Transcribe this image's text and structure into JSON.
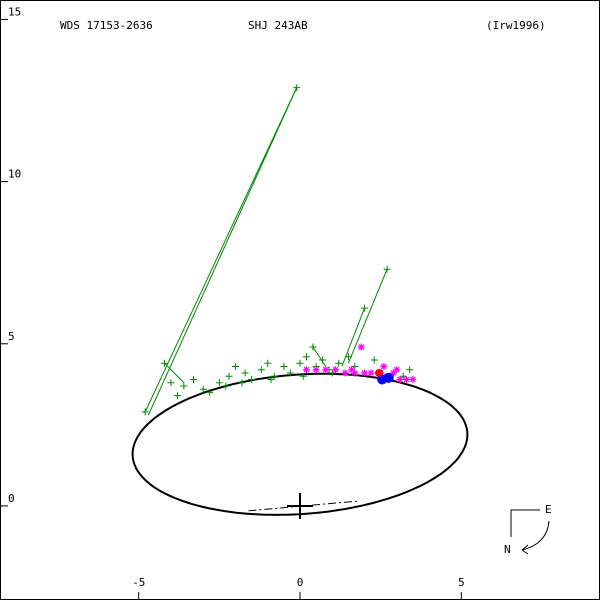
{
  "header": {
    "left": "WDS 17153-2636",
    "center": "SHJ 243AB",
    "right": "(Irw1996)"
  },
  "compass": {
    "east": "E",
    "north": "N"
  },
  "colors": {
    "orbit": "#000000",
    "observations": "#008800",
    "speckle": "#ff00ff",
    "current_position": "#ff0000",
    "predicted": "#0000ff"
  },
  "chart_data": {
    "type": "scatter",
    "xlim": [
      -9.3,
      9.3
    ],
    "ylim": [
      -2.9,
      15.6
    ],
    "x_ticks": [
      -5,
      0,
      5
    ],
    "y_ticks": [
      15,
      10,
      5,
      0
    ],
    "x_tick_labels": [
      "-5",
      "0",
      "5"
    ],
    "y_tick_labels": [
      "15",
      "10",
      "5",
      "0"
    ],
    "grid": false,
    "orbit": {
      "center": [
        0.0,
        1.9
      ],
      "semi_major_axis": 5.2,
      "semi_minor_axis": 2.15,
      "rotation_deg": 4
    },
    "primary": [
      0,
      0
    ],
    "node_line": [
      [
        -1.6,
        -0.15
      ],
      [
        1.8,
        0.15
      ]
    ],
    "observations": [
      [
        -0.1,
        12.9
      ],
      [
        -4.8,
        2.9
      ],
      [
        -4.2,
        4.4
      ],
      [
        -4.0,
        3.8
      ],
      [
        -3.6,
        3.7
      ],
      [
        -3.3,
        3.9
      ],
      [
        -3.0,
        3.6
      ],
      [
        -2.8,
        3.5
      ],
      [
        -2.5,
        3.8
      ],
      [
        -2.2,
        4.0
      ],
      [
        -2.0,
        4.3
      ],
      [
        -1.7,
        4.1
      ],
      [
        -1.5,
        3.9
      ],
      [
        -1.2,
        4.2
      ],
      [
        -1.0,
        4.4
      ],
      [
        -0.8,
        4.0
      ],
      [
        -0.5,
        4.3
      ],
      [
        -0.3,
        4.1
      ],
      [
        0.0,
        4.4
      ],
      [
        0.2,
        4.6
      ],
      [
        0.4,
        4.9
      ],
      [
        0.5,
        4.3
      ],
      [
        0.7,
        4.5
      ],
      [
        0.9,
        4.2
      ],
      [
        1.2,
        4.4
      ],
      [
        1.5,
        4.6
      ],
      [
        1.7,
        4.3
      ],
      [
        2.0,
        6.1
      ],
      [
        2.3,
        4.5
      ],
      [
        2.7,
        7.3
      ],
      [
        2.9,
        4.1
      ],
      [
        3.2,
        4.0
      ],
      [
        3.4,
        4.2
      ],
      [
        -3.8,
        3.4
      ],
      [
        -2.3,
        3.7
      ],
      [
        -1.8,
        3.8
      ],
      [
        -0.9,
        3.9
      ],
      [
        0.1,
        4.0
      ],
      [
        1.0,
        4.1
      ],
      [
        2.5,
        3.9
      ]
    ],
    "observation_connectors": [
      [
        [
          -0.1,
          12.9
        ],
        [
          -4.8,
          2.9
        ]
      ],
      [
        [
          -0.1,
          12.9
        ],
        [
          -4.7,
          2.8
        ]
      ],
      [
        [
          2.7,
          7.3
        ],
        [
          1.5,
          4.4
        ]
      ],
      [
        [
          2.0,
          6.1
        ],
        [
          1.3,
          4.3
        ]
      ],
      [
        [
          -4.2,
          4.4
        ],
        [
          -3.6,
          3.8
        ]
      ],
      [
        [
          0.4,
          4.9
        ],
        [
          0.8,
          4.3
        ]
      ]
    ],
    "speckle": [
      [
        0.2,
        4.2
      ],
      [
        0.5,
        4.2
      ],
      [
        0.8,
        4.2
      ],
      [
        1.1,
        4.2
      ],
      [
        1.4,
        4.1
      ],
      [
        1.7,
        4.1
      ],
      [
        2.0,
        4.1
      ],
      [
        2.2,
        4.1
      ],
      [
        2.5,
        4.1
      ],
      [
        2.7,
        4.0
      ],
      [
        2.9,
        4.1
      ],
      [
        3.1,
        3.9
      ],
      [
        3.3,
        3.9
      ],
      [
        3.5,
        3.9
      ],
      [
        1.9,
        4.9
      ],
      [
        3.0,
        4.2
      ],
      [
        2.6,
        4.3
      ],
      [
        1.6,
        4.2
      ]
    ],
    "predicted": [
      [
        2.55,
        3.9
      ],
      [
        2.75,
        3.95
      ]
    ],
    "current_position": [
      2.45,
      4.1
    ]
  }
}
